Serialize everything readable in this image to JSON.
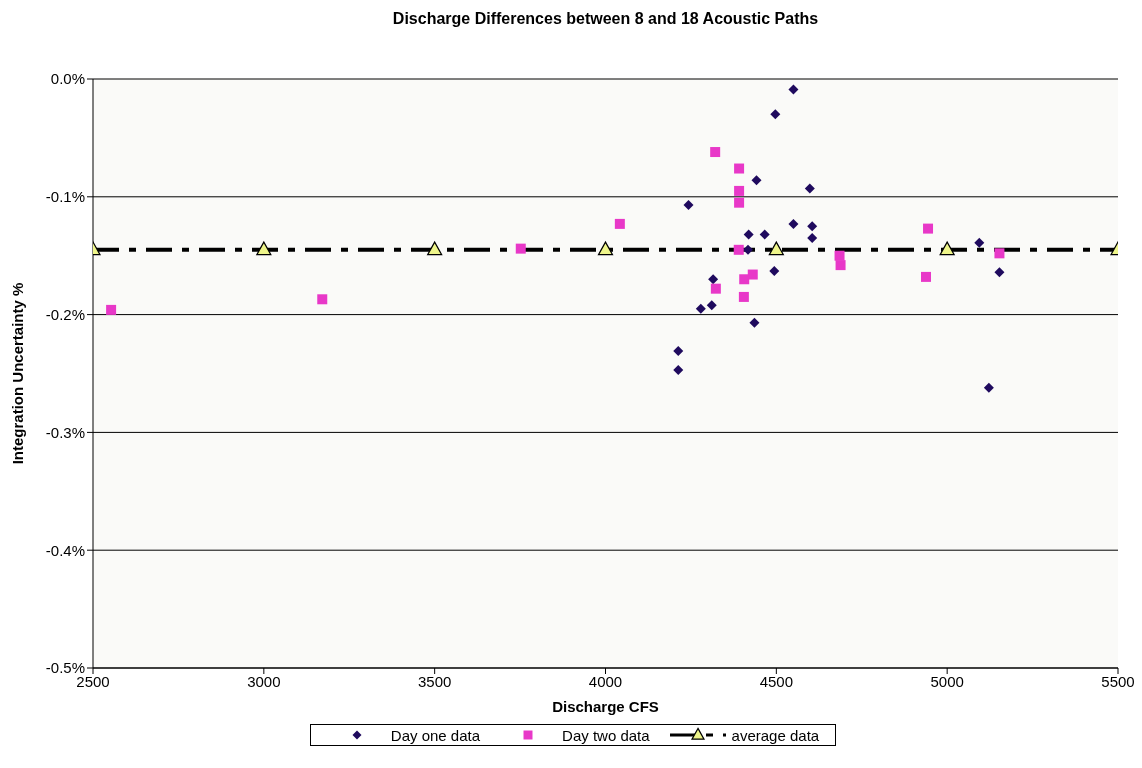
{
  "chart_data": {
    "type": "scatter",
    "title": "Discharge Differences between 8 and 18 Acoustic Paths",
    "xlabel": "Discharge CFS",
    "ylabel": "Integration Uncertainty %",
    "xlim": [
      2500,
      5500
    ],
    "xticks": [
      2500,
      3000,
      3500,
      4000,
      4500,
      5000,
      5500
    ],
    "ylim": [
      -0.5,
      0
    ],
    "yticks": [
      {
        "value": -0.5,
        "label": "-0.5%"
      },
      {
        "value": -0.4,
        "label": "-0.4%"
      },
      {
        "value": -0.3,
        "label": "-0.3%"
      },
      {
        "value": -0.2,
        "label": "-0.2%"
      },
      {
        "value": -0.1,
        "label": "-0.1%"
      },
      {
        "value": 0,
        "label": "0.0%"
      }
    ],
    "grid": "y",
    "legend": "bottom",
    "series": [
      {
        "name": "Day one data",
        "marker": "diamond",
        "color": "#1f0a5e",
        "x": [
          4550,
          4497,
          4442,
          4598,
          4243,
          4550,
          4605,
          4605,
          4419,
          4466,
          4417,
          4494,
          4315,
          4311,
          4279,
          4436,
          4213,
          4213,
          5094,
          5153,
          5122
        ],
        "values": [
          -0.009,
          -0.03,
          -0.086,
          -0.093,
          -0.107,
          -0.123,
          -0.125,
          -0.135,
          -0.132,
          -0.132,
          -0.145,
          -0.163,
          -0.17,
          -0.192,
          -0.195,
          -0.207,
          -0.231,
          -0.247,
          -0.139,
          -0.164,
          -0.262
        ]
      },
      {
        "name": "Day two data",
        "marker": "square",
        "color": "#e838c8",
        "x": [
          4321,
          4391,
          4391,
          4391,
          4390,
          4685,
          4688,
          4431,
          4406,
          4323,
          4405,
          4944,
          4938,
          5153,
          2553,
          3171,
          3752,
          4042
        ],
        "values": [
          -0.062,
          -0.076,
          -0.095,
          -0.105,
          -0.145,
          -0.15,
          -0.158,
          -0.166,
          -0.17,
          -0.178,
          -0.185,
          -0.127,
          -0.168,
          -0.148,
          -0.196,
          -0.187,
          -0.144,
          -0.123
        ]
      },
      {
        "name": "average data",
        "type": "line",
        "marker": "triangle",
        "line_style": "dashed",
        "color": "#000000",
        "colors": [
          "#eef58a",
          "#eef58a",
          "#eef58a",
          "#eef58a",
          "#eef58a",
          "#eef58a",
          "#eef58a"
        ],
        "x": [
          2500,
          3000,
          3500,
          4000,
          4500,
          5000,
          5500
        ],
        "values": [
          -0.145,
          -0.145,
          -0.145,
          -0.145,
          -0.145,
          -0.145,
          -0.145
        ]
      }
    ]
  }
}
